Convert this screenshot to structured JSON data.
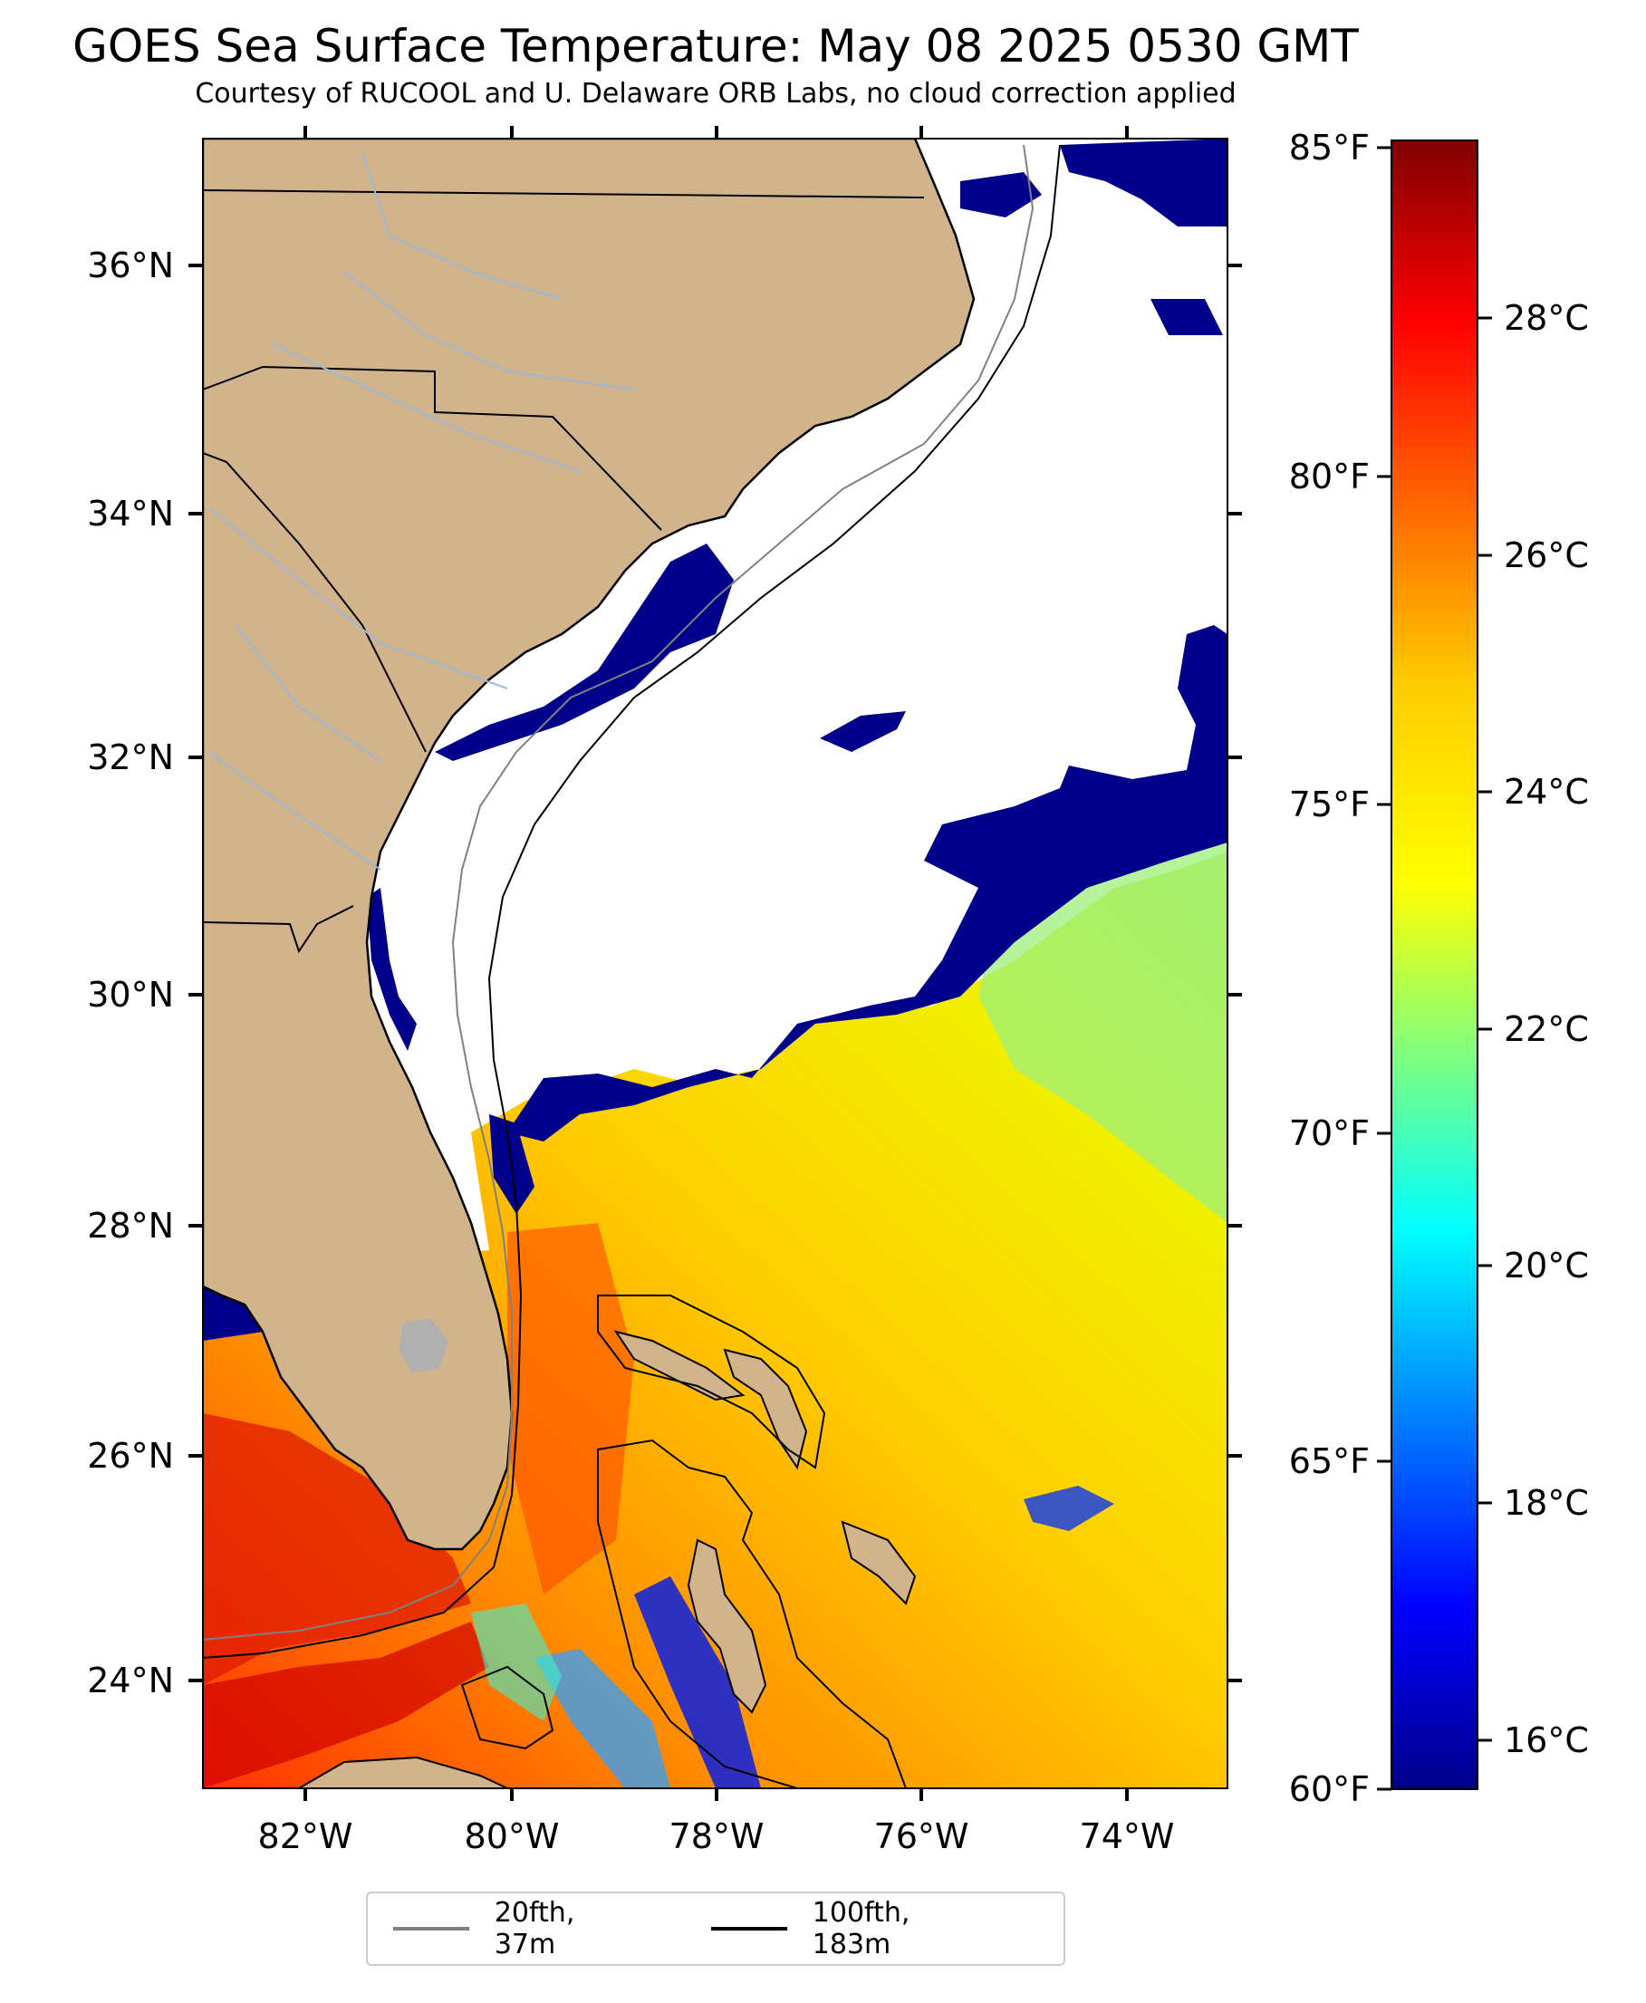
{
  "header": {
    "title": "GOES Sea Surface Temperature: May 08 2025 0530 GMT",
    "subtitle": "Courtesy of RUCOOL and U. Delaware ORB Labs, no cloud correction applied"
  },
  "map": {
    "lon_range": [
      -83,
      -73
    ],
    "lat_range": [
      23,
      37
    ],
    "lon_ticks": [
      "82°W",
      "80°W",
      "78°W",
      "76°W",
      "74°W"
    ],
    "lat_ticks": [
      "36°N",
      "34°N",
      "32°N",
      "30°N",
      "28°N",
      "26°N",
      "24°N"
    ],
    "colors": {
      "land": "#d2b48c",
      "cloud_mask": "#ffffff",
      "cold_pixels": "#00008b",
      "lake": "#b0b0b0",
      "rivers": "#9db8d6"
    }
  },
  "colorbar": {
    "colormap": "jet",
    "celsius_range": [
      15.6,
      29.4
    ],
    "fahrenheit_labels": [
      "85°F",
      "80°F",
      "75°F",
      "70°F",
      "65°F",
      "60°F"
    ],
    "celsius_labels": [
      "28°C",
      "26°C",
      "24°C",
      "22°C",
      "20°C",
      "18°C",
      "16°C"
    ]
  },
  "legend": {
    "items": [
      {
        "label": "20fth, 37m",
        "color": "#808080"
      },
      {
        "label": "100fth, 183m",
        "color": "#000000"
      }
    ]
  }
}
